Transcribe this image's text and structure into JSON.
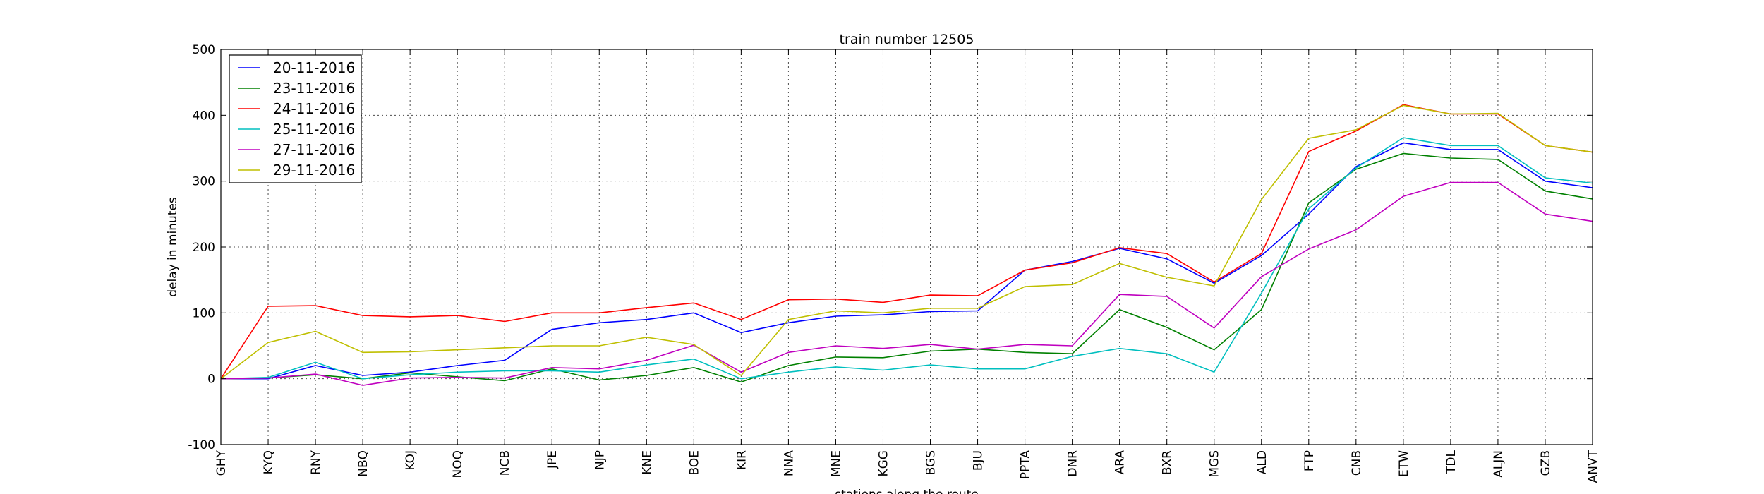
{
  "chart_data": {
    "type": "line",
    "title": "train number 12505",
    "xlabel": "stations along the route",
    "ylabel": "delay in minutes",
    "ylim": [
      -100,
      500
    ],
    "yticks": [
      -100,
      0,
      100,
      200,
      300,
      400,
      500
    ],
    "grid": true,
    "legend_position": "top-left",
    "categories": [
      "GHY",
      "KYQ",
      "RNY",
      "NBQ",
      "KOJ",
      "NOQ",
      "NCB",
      "JPE",
      "NJP",
      "KNE",
      "BOE",
      "KIR",
      "NNA",
      "MNE",
      "KGG",
      "BGS",
      "BJU",
      "PPTA",
      "DNR",
      "ARA",
      "BXR",
      "MGS",
      "ALD",
      "FTP",
      "CNB",
      "ETW",
      "TDL",
      "ALJN",
      "GZB",
      "ANVT"
    ],
    "series": [
      {
        "name": "20-11-2016",
        "color": "#0000ff",
        "values": [
          0,
          0,
          20,
          5,
          10,
          20,
          28,
          75,
          85,
          90,
          100,
          70,
          85,
          95,
          97,
          102,
          103,
          165,
          178,
          198,
          182,
          145,
          187,
          250,
          322,
          358,
          348,
          348,
          300,
          290
        ]
      },
      {
        "name": "23-11-2016",
        "color": "#008000",
        "values": [
          0,
          1,
          6,
          0,
          9,
          3,
          -3,
          15,
          -2,
          5,
          17,
          -5,
          20,
          33,
          32,
          42,
          45,
          40,
          38,
          105,
          78,
          44,
          105,
          267,
          318,
          342,
          335,
          333,
          285,
          273
        ]
      },
      {
        "name": "24-11-2016",
        "color": "#ff0000",
        "values": [
          0,
          110,
          111,
          96,
          94,
          96,
          87,
          100,
          100,
          108,
          115,
          90,
          120,
          121,
          116,
          127,
          126,
          165,
          176,
          199,
          190,
          147,
          190,
          345,
          376,
          416,
          402,
          402,
          354,
          344
        ]
      },
      {
        "name": "25-11-2016",
        "color": "#00bfbf",
        "values": [
          0,
          2,
          25,
          0,
          6,
          10,
          12,
          12,
          10,
          21,
          30,
          0,
          10,
          18,
          13,
          21,
          15,
          15,
          34,
          46,
          38,
          10,
          130,
          258,
          320,
          366,
          354,
          354,
          305,
          297
        ]
      },
      {
        "name": "27-11-2016",
        "color": "#bf00bf",
        "values": [
          0,
          1,
          7,
          -10,
          1,
          2,
          1,
          17,
          15,
          28,
          51,
          10,
          40,
          50,
          46,
          52,
          45,
          52,
          50,
          128,
          125,
          77,
          155,
          197,
          226,
          277,
          298,
          298,
          250,
          239
        ]
      },
      {
        "name": "29-11-2016",
        "color": "#bfbf00",
        "values": [
          0,
          55,
          72,
          40,
          41,
          44,
          47,
          50,
          50,
          63,
          52,
          5,
          90,
          103,
          100,
          107,
          107,
          140,
          143,
          175,
          154,
          141,
          272,
          365,
          378,
          415,
          402,
          403,
          354,
          344
        ]
      }
    ]
  }
}
